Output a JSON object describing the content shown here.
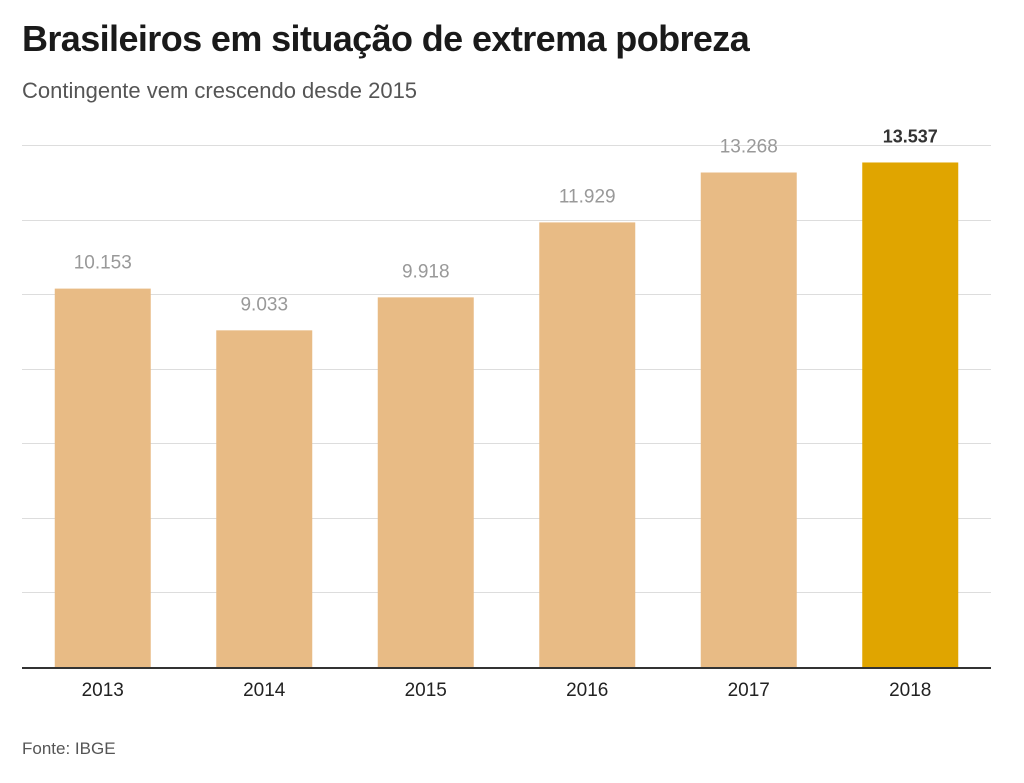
{
  "header": {
    "title": "Brasileiros em situação de extrema pobreza",
    "subtitle": "Contingente vem crescendo desde 2015"
  },
  "footer": {
    "source": "Fonte: IBGE"
  },
  "colors": {
    "bar": "#e8bb85",
    "highlight_bar": "#e0a500",
    "grid": "#dddddd",
    "axis": "#333333",
    "label": "#999999",
    "highlight_label": "#333333"
  },
  "chart_data": {
    "type": "bar",
    "categories": [
      "2013",
      "2014",
      "2015",
      "2016",
      "2017",
      "2018"
    ],
    "values": [
      10153,
      9033,
      9918,
      11929,
      13268,
      13537
    ],
    "value_labels": [
      "10.153",
      "9.033",
      "9.918",
      "11.929",
      "13.268",
      "13.537"
    ],
    "highlight_index": 5,
    "ylim": [
      0,
      14000
    ],
    "grid": true,
    "legend": "none"
  }
}
